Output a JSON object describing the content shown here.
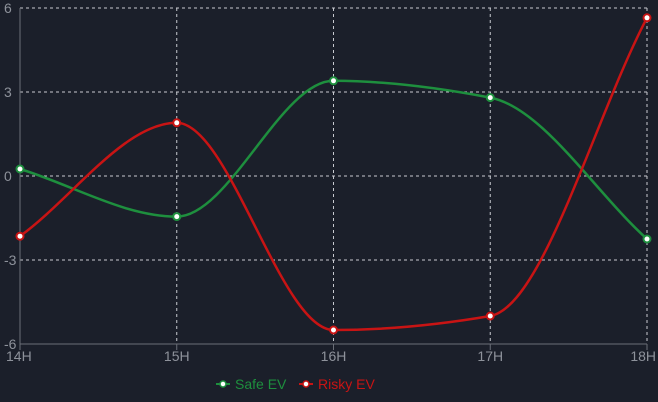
{
  "chart_data": {
    "type": "line",
    "x": [
      "14H",
      "15H",
      "16H",
      "17H",
      "18H"
    ],
    "y_ticks": [
      "-6",
      "-3",
      "0",
      "3",
      "6"
    ],
    "ylim": [
      -6,
      6
    ],
    "grid": true,
    "legend_position": "bottom-center",
    "series": [
      {
        "name": "Safe EV",
        "color": "#1e8f3e",
        "values": [
          0.25,
          -1.45,
          3.4,
          2.8,
          -2.25
        ]
      },
      {
        "name": "Risky EV",
        "color": "#c81414",
        "values": [
          -2.15,
          1.9,
          -5.5,
          -5.0,
          5.65
        ]
      }
    ]
  },
  "colors": {
    "background": "#1b1f2a",
    "grid": "#c8cad0",
    "axis": "#6b6f78",
    "tick_text": "#8e929b"
  }
}
